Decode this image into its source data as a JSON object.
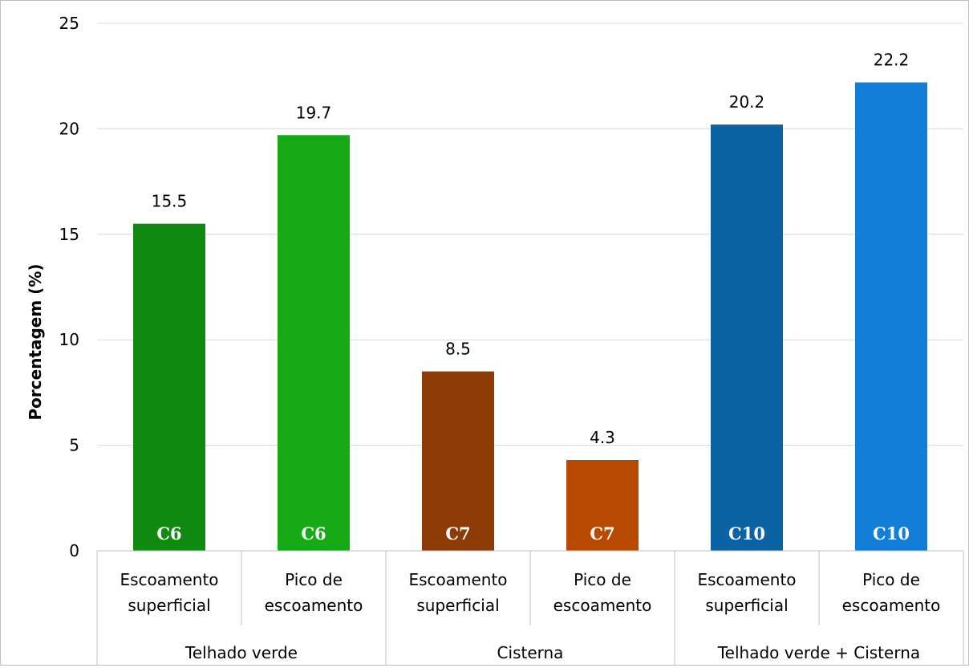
{
  "chart_data": {
    "type": "bar",
    "ylabel": "Porcentagem (%)",
    "xlabel": "",
    "title": "",
    "ylim": [
      0,
      25
    ],
    "yticks": [
      0,
      5,
      10,
      15,
      20,
      25
    ],
    "grid": true,
    "legend": "none",
    "groups": [
      "Telhado verde",
      "Cisterna",
      "Telhado verde + Cisterna"
    ],
    "categories": [
      [
        "Escoamento",
        "superficial"
      ],
      [
        "Pico de",
        "escoamento"
      ],
      [
        "Escoamento",
        "superficial"
      ],
      [
        "Pico de",
        "escoamento"
      ],
      [
        "Escoamento",
        "superficial"
      ],
      [
        "Pico de",
        "escoamento"
      ]
    ],
    "values": [
      15.5,
      19.7,
      8.5,
      4.3,
      20.2,
      22.2
    ],
    "value_labels": [
      "15.5",
      "19.7",
      "8.5",
      "4.3",
      "20.2",
      "22.2"
    ],
    "bar_codes": [
      "C6",
      "C6",
      "C7",
      "C7",
      "C10",
      "C10"
    ],
    "colors": [
      "#118a11",
      "#17aa17",
      "#8b3b03",
      "#b74a00",
      "#0b62a4",
      "#127ed7"
    ]
  }
}
